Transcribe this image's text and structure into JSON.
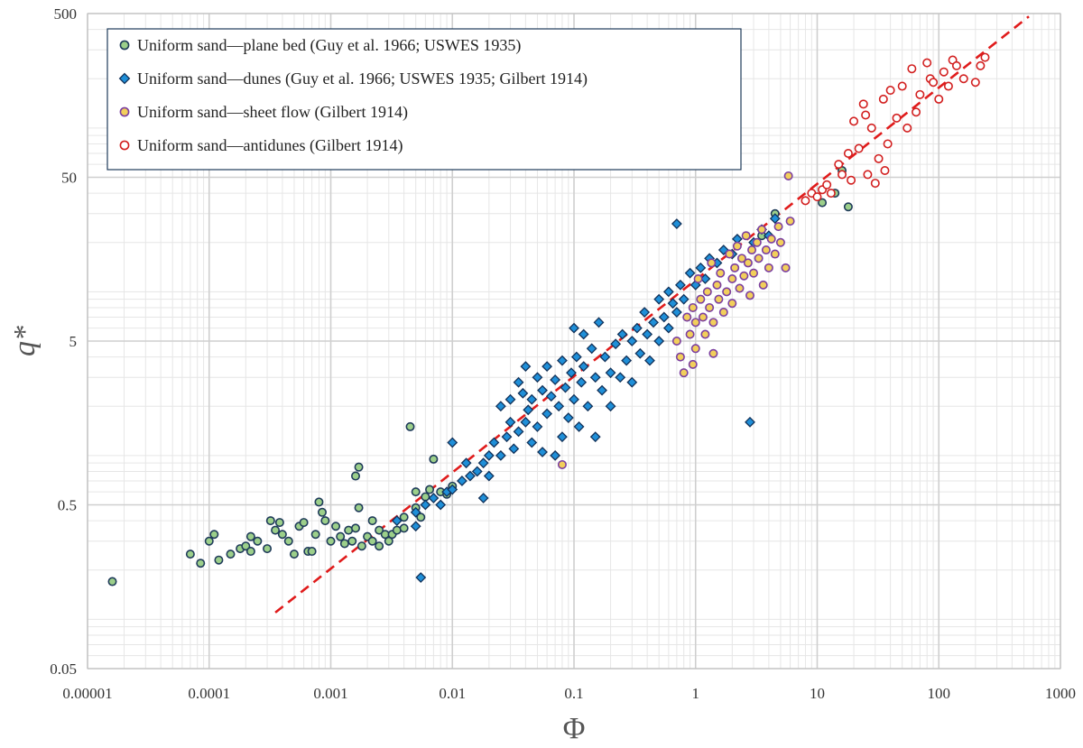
{
  "chart_data": {
    "type": "scatter",
    "xlabel": "Φ",
    "ylabel": "q*",
    "xscale": "log",
    "yscale": "log",
    "xlim": [
      1e-05,
      1000
    ],
    "ylim": [
      0.05,
      500
    ],
    "xticks": [
      {
        "value": 1e-05,
        "label": "0.00001"
      },
      {
        "value": 0.0001,
        "label": "0.0001"
      },
      {
        "value": 0.001,
        "label": "0.001"
      },
      {
        "value": 0.01,
        "label": "0.01"
      },
      {
        "value": 0.1,
        "label": "0.1"
      },
      {
        "value": 1,
        "label": "1"
      },
      {
        "value": 10,
        "label": "10"
      },
      {
        "value": 100,
        "label": "100"
      },
      {
        "value": 1000,
        "label": "1000"
      }
    ],
    "yticks": [
      {
        "value": 0.05,
        "label": "0.05"
      },
      {
        "value": 0.5,
        "label": "0.5"
      },
      {
        "value": 5,
        "label": "5"
      },
      {
        "value": 50,
        "label": "50"
      },
      {
        "value": 500,
        "label": "500"
      }
    ],
    "grid": true,
    "legend_position": "top-left",
    "series": [
      {
        "name": "Uniform sand—plane bed (Guy et al. 1966; USWES 1935)",
        "marker": "circle",
        "color": "#9ccf8a",
        "edge": "#1f3b5a",
        "points": [
          [
            1.6e-05,
            0.17
          ],
          [
            7e-05,
            0.25
          ],
          [
            8.5e-05,
            0.22
          ],
          [
            0.0001,
            0.3
          ],
          [
            0.00011,
            0.33
          ],
          [
            0.00012,
            0.23
          ],
          [
            0.00015,
            0.25
          ],
          [
            0.00018,
            0.27
          ],
          [
            0.0002,
            0.28
          ],
          [
            0.00022,
            0.26
          ],
          [
            0.00022,
            0.32
          ],
          [
            0.00025,
            0.3
          ],
          [
            0.0003,
            0.27
          ],
          [
            0.00032,
            0.4
          ],
          [
            0.00035,
            0.35
          ],
          [
            0.00038,
            0.39
          ],
          [
            0.0004,
            0.33
          ],
          [
            0.00045,
            0.3
          ],
          [
            0.0005,
            0.25
          ],
          [
            0.00055,
            0.37
          ],
          [
            0.0006,
            0.39
          ],
          [
            0.00065,
            0.26
          ],
          [
            0.0007,
            0.26
          ],
          [
            0.00075,
            0.33
          ],
          [
            0.0008,
            0.52
          ],
          [
            0.00085,
            0.45
          ],
          [
            0.0009,
            0.4
          ],
          [
            0.001,
            0.3
          ],
          [
            0.0011,
            0.37
          ],
          [
            0.0012,
            0.32
          ],
          [
            0.0013,
            0.29
          ],
          [
            0.0014,
            0.35
          ],
          [
            0.0015,
            0.3
          ],
          [
            0.0016,
            0.36
          ],
          [
            0.0016,
            0.75
          ],
          [
            0.0017,
            0.85
          ],
          [
            0.0017,
            0.48
          ],
          [
            0.0018,
            0.28
          ],
          [
            0.002,
            0.32
          ],
          [
            0.0022,
            0.3
          ],
          [
            0.0022,
            0.4
          ],
          [
            0.0025,
            0.35
          ],
          [
            0.0025,
            0.28
          ],
          [
            0.0028,
            0.33
          ],
          [
            0.003,
            0.3
          ],
          [
            0.0032,
            0.33
          ],
          [
            0.0035,
            0.35
          ],
          [
            0.004,
            0.36
          ],
          [
            0.004,
            0.42
          ],
          [
            0.0045,
            1.5
          ],
          [
            0.005,
            0.6
          ],
          [
            0.005,
            0.48
          ],
          [
            0.0055,
            0.42
          ],
          [
            0.006,
            0.56
          ],
          [
            0.0065,
            0.62
          ],
          [
            0.007,
            0.95
          ],
          [
            0.008,
            0.6
          ],
          [
            0.009,
            0.58
          ],
          [
            0.01,
            0.65
          ],
          [
            14,
            40
          ],
          [
            16,
            55
          ],
          [
            18,
            33
          ],
          [
            3.5,
            22
          ],
          [
            4.5,
            30
          ],
          [
            11,
            35
          ]
        ]
      },
      {
        "name": "Uniform sand—dunes (Guy et al. 1966; USWES 1935; Gilbert 1914)",
        "marker": "diamond",
        "color": "#1f8fd8",
        "edge": "#12325a",
        "points": [
          [
            0.0035,
            0.4
          ],
          [
            0.005,
            0.45
          ],
          [
            0.005,
            0.37
          ],
          [
            0.0055,
            0.18
          ],
          [
            0.006,
            0.5
          ],
          [
            0.007,
            0.55
          ],
          [
            0.008,
            0.5
          ],
          [
            0.009,
            0.6
          ],
          [
            0.01,
            1.2
          ],
          [
            0.01,
            0.62
          ],
          [
            0.012,
            0.7
          ],
          [
            0.014,
            0.75
          ],
          [
            0.016,
            0.8
          ],
          [
            0.018,
            0.9
          ],
          [
            0.02,
            1.0
          ],
          [
            0.02,
            0.75
          ],
          [
            0.022,
            1.2
          ],
          [
            0.025,
            2.0
          ],
          [
            0.025,
            1.0
          ],
          [
            0.028,
            1.3
          ],
          [
            0.03,
            1.6
          ],
          [
            0.03,
            2.2
          ],
          [
            0.032,
            1.1
          ],
          [
            0.035,
            2.8
          ],
          [
            0.035,
            1.4
          ],
          [
            0.038,
            2.4
          ],
          [
            0.04,
            3.5
          ],
          [
            0.04,
            1.6
          ],
          [
            0.042,
            1.9
          ],
          [
            0.045,
            2.2
          ],
          [
            0.045,
            1.2
          ],
          [
            0.05,
            3.0
          ],
          [
            0.05,
            1.5
          ],
          [
            0.055,
            2.5
          ],
          [
            0.055,
            1.05
          ],
          [
            0.06,
            1.8
          ],
          [
            0.06,
            3.5
          ],
          [
            0.065,
            2.3
          ],
          [
            0.07,
            1.0
          ],
          [
            0.07,
            2.9
          ],
          [
            0.075,
            2.0
          ],
          [
            0.08,
            1.3
          ],
          [
            0.08,
            3.8
          ],
          [
            0.085,
            2.6
          ],
          [
            0.09,
            1.7
          ],
          [
            0.095,
            3.2
          ],
          [
            0.1,
            6.0
          ],
          [
            0.1,
            2.2
          ],
          [
            0.105,
            4.0
          ],
          [
            0.11,
            1.5
          ],
          [
            0.115,
            2.8
          ],
          [
            0.12,
            5.5
          ],
          [
            0.12,
            3.5
          ],
          [
            0.13,
            2.0
          ],
          [
            0.14,
            4.5
          ],
          [
            0.15,
            1.3
          ],
          [
            0.15,
            3.0
          ],
          [
            0.16,
            6.5
          ],
          [
            0.17,
            2.5
          ],
          [
            0.18,
            4.0
          ],
          [
            0.2,
            3.2
          ],
          [
            0.2,
            2.0
          ],
          [
            0.22,
            4.8
          ],
          [
            0.24,
            3.0
          ],
          [
            0.25,
            5.5
          ],
          [
            0.27,
            3.8
          ],
          [
            0.3,
            5.0
          ],
          [
            0.3,
            2.8
          ],
          [
            0.33,
            6.0
          ],
          [
            0.35,
            4.2
          ],
          [
            0.38,
            7.5
          ],
          [
            0.4,
            5.5
          ],
          [
            0.42,
            3.8
          ],
          [
            0.45,
            6.5
          ],
          [
            0.5,
            9.0
          ],
          [
            0.5,
            5.0
          ],
          [
            0.55,
            7.0
          ],
          [
            0.6,
            10.0
          ],
          [
            0.6,
            6.0
          ],
          [
            0.65,
            8.5
          ],
          [
            0.7,
            26.0
          ],
          [
            0.7,
            7.5
          ],
          [
            0.75,
            11.0
          ],
          [
            0.8,
            9.0
          ],
          [
            0.9,
            13.0
          ],
          [
            1.0,
            11.0
          ],
          [
            1.1,
            14.0
          ],
          [
            1.2,
            12.0
          ],
          [
            1.3,
            16.0
          ],
          [
            1.5,
            15.0
          ],
          [
            1.7,
            18.0
          ],
          [
            2.0,
            17.0
          ],
          [
            2.2,
            21.0
          ],
          [
            2.8,
            1.6
          ],
          [
            3.0,
            20.0
          ],
          [
            3.5,
            24.0
          ],
          [
            4.0,
            22.0
          ],
          [
            4.5,
            28.0
          ],
          [
            0.018,
            0.55
          ],
          [
            0.013,
            0.9
          ]
        ]
      },
      {
        "name": "Uniform sand—sheet flow (Gilbert 1914)",
        "marker": "circle",
        "color": "#f2cf5b",
        "edge": "#7b3fa0",
        "points": [
          [
            0.08,
            0.88
          ],
          [
            0.7,
            5.0
          ],
          [
            0.75,
            4.0
          ],
          [
            0.8,
            3.2
          ],
          [
            0.85,
            7.0
          ],
          [
            0.9,
            5.5
          ],
          [
            0.95,
            8.0
          ],
          [
            1.0,
            6.5
          ],
          [
            1.0,
            4.5
          ],
          [
            1.05,
            12.0
          ],
          [
            1.1,
            9.0
          ],
          [
            1.15,
            7.0
          ],
          [
            1.2,
            5.5
          ],
          [
            1.25,
            10.0
          ],
          [
            1.3,
            8.0
          ],
          [
            1.35,
            15.0
          ],
          [
            1.4,
            6.5
          ],
          [
            1.5,
            11.0
          ],
          [
            1.55,
            9.0
          ],
          [
            1.6,
            13.0
          ],
          [
            1.7,
            7.5
          ],
          [
            1.8,
            10.0
          ],
          [
            1.9,
            17.0
          ],
          [
            2.0,
            12.0
          ],
          [
            2.0,
            8.5
          ],
          [
            2.1,
            14.0
          ],
          [
            2.2,
            19.0
          ],
          [
            2.3,
            10.5
          ],
          [
            2.4,
            16.0
          ],
          [
            2.5,
            12.5
          ],
          [
            2.6,
            22.0
          ],
          [
            2.7,
            15.0
          ],
          [
            2.8,
            9.5
          ],
          [
            2.9,
            18.0
          ],
          [
            3.0,
            13.0
          ],
          [
            3.2,
            20.0
          ],
          [
            3.3,
            16.0
          ],
          [
            3.5,
            24.0
          ],
          [
            3.6,
            11.0
          ],
          [
            3.8,
            18.0
          ],
          [
            4.0,
            14.0
          ],
          [
            4.2,
            21.0
          ],
          [
            4.5,
            17.0
          ],
          [
            4.8,
            25.0
          ],
          [
            5.0,
            20.0
          ],
          [
            5.5,
            14.0
          ],
          [
            5.8,
            51.0
          ],
          [
            6.0,
            27.0
          ],
          [
            0.95,
            3.6
          ],
          [
            1.4,
            4.2
          ]
        ]
      },
      {
        "name": "Uniform sand—antidunes (Gilbert 1914)",
        "marker": "circle",
        "color": "#ffffff",
        "edge": "#d21f1f",
        "points": [
          [
            8.0,
            36.0
          ],
          [
            9.0,
            40.0
          ],
          [
            10.0,
            38.0
          ],
          [
            11.0,
            42.0
          ],
          [
            12.0,
            45.0
          ],
          [
            13.0,
            40.0
          ],
          [
            15.0,
            60.0
          ],
          [
            16.0,
            52.0
          ],
          [
            18.0,
            70.0
          ],
          [
            19.0,
            48.0
          ],
          [
            20.0,
            110.0
          ],
          [
            22.0,
            75.0
          ],
          [
            24.0,
            140.0
          ],
          [
            25.0,
            120.0
          ],
          [
            26.0,
            52.0
          ],
          [
            28.0,
            100.0
          ],
          [
            30.0,
            46.0
          ],
          [
            32.0,
            65.0
          ],
          [
            35.0,
            150.0
          ],
          [
            36.0,
            55.0
          ],
          [
            38.0,
            80.0
          ],
          [
            40.0,
            170.0
          ],
          [
            45.0,
            115.0
          ],
          [
            50.0,
            180.0
          ],
          [
            55.0,
            100.0
          ],
          [
            60.0,
            230.0
          ],
          [
            65.0,
            125.0
          ],
          [
            70.0,
            160.0
          ],
          [
            80.0,
            250.0
          ],
          [
            85.0,
            200.0
          ],
          [
            90.0,
            190.0
          ],
          [
            100.0,
            150.0
          ],
          [
            110.0,
            220.0
          ],
          [
            120.0,
            180.0
          ],
          [
            130.0,
            260.0
          ],
          [
            140.0,
            240.0
          ],
          [
            160.0,
            200.0
          ],
          [
            200.0,
            190.0
          ],
          [
            220.0,
            240.0
          ],
          [
            240.0,
            270.0
          ]
        ]
      }
    ],
    "reference_line": {
      "style": "dashed",
      "color": "#e01b1b",
      "from": [
        0.00035,
        0.11
      ],
      "to": [
        550,
        480
      ]
    }
  }
}
